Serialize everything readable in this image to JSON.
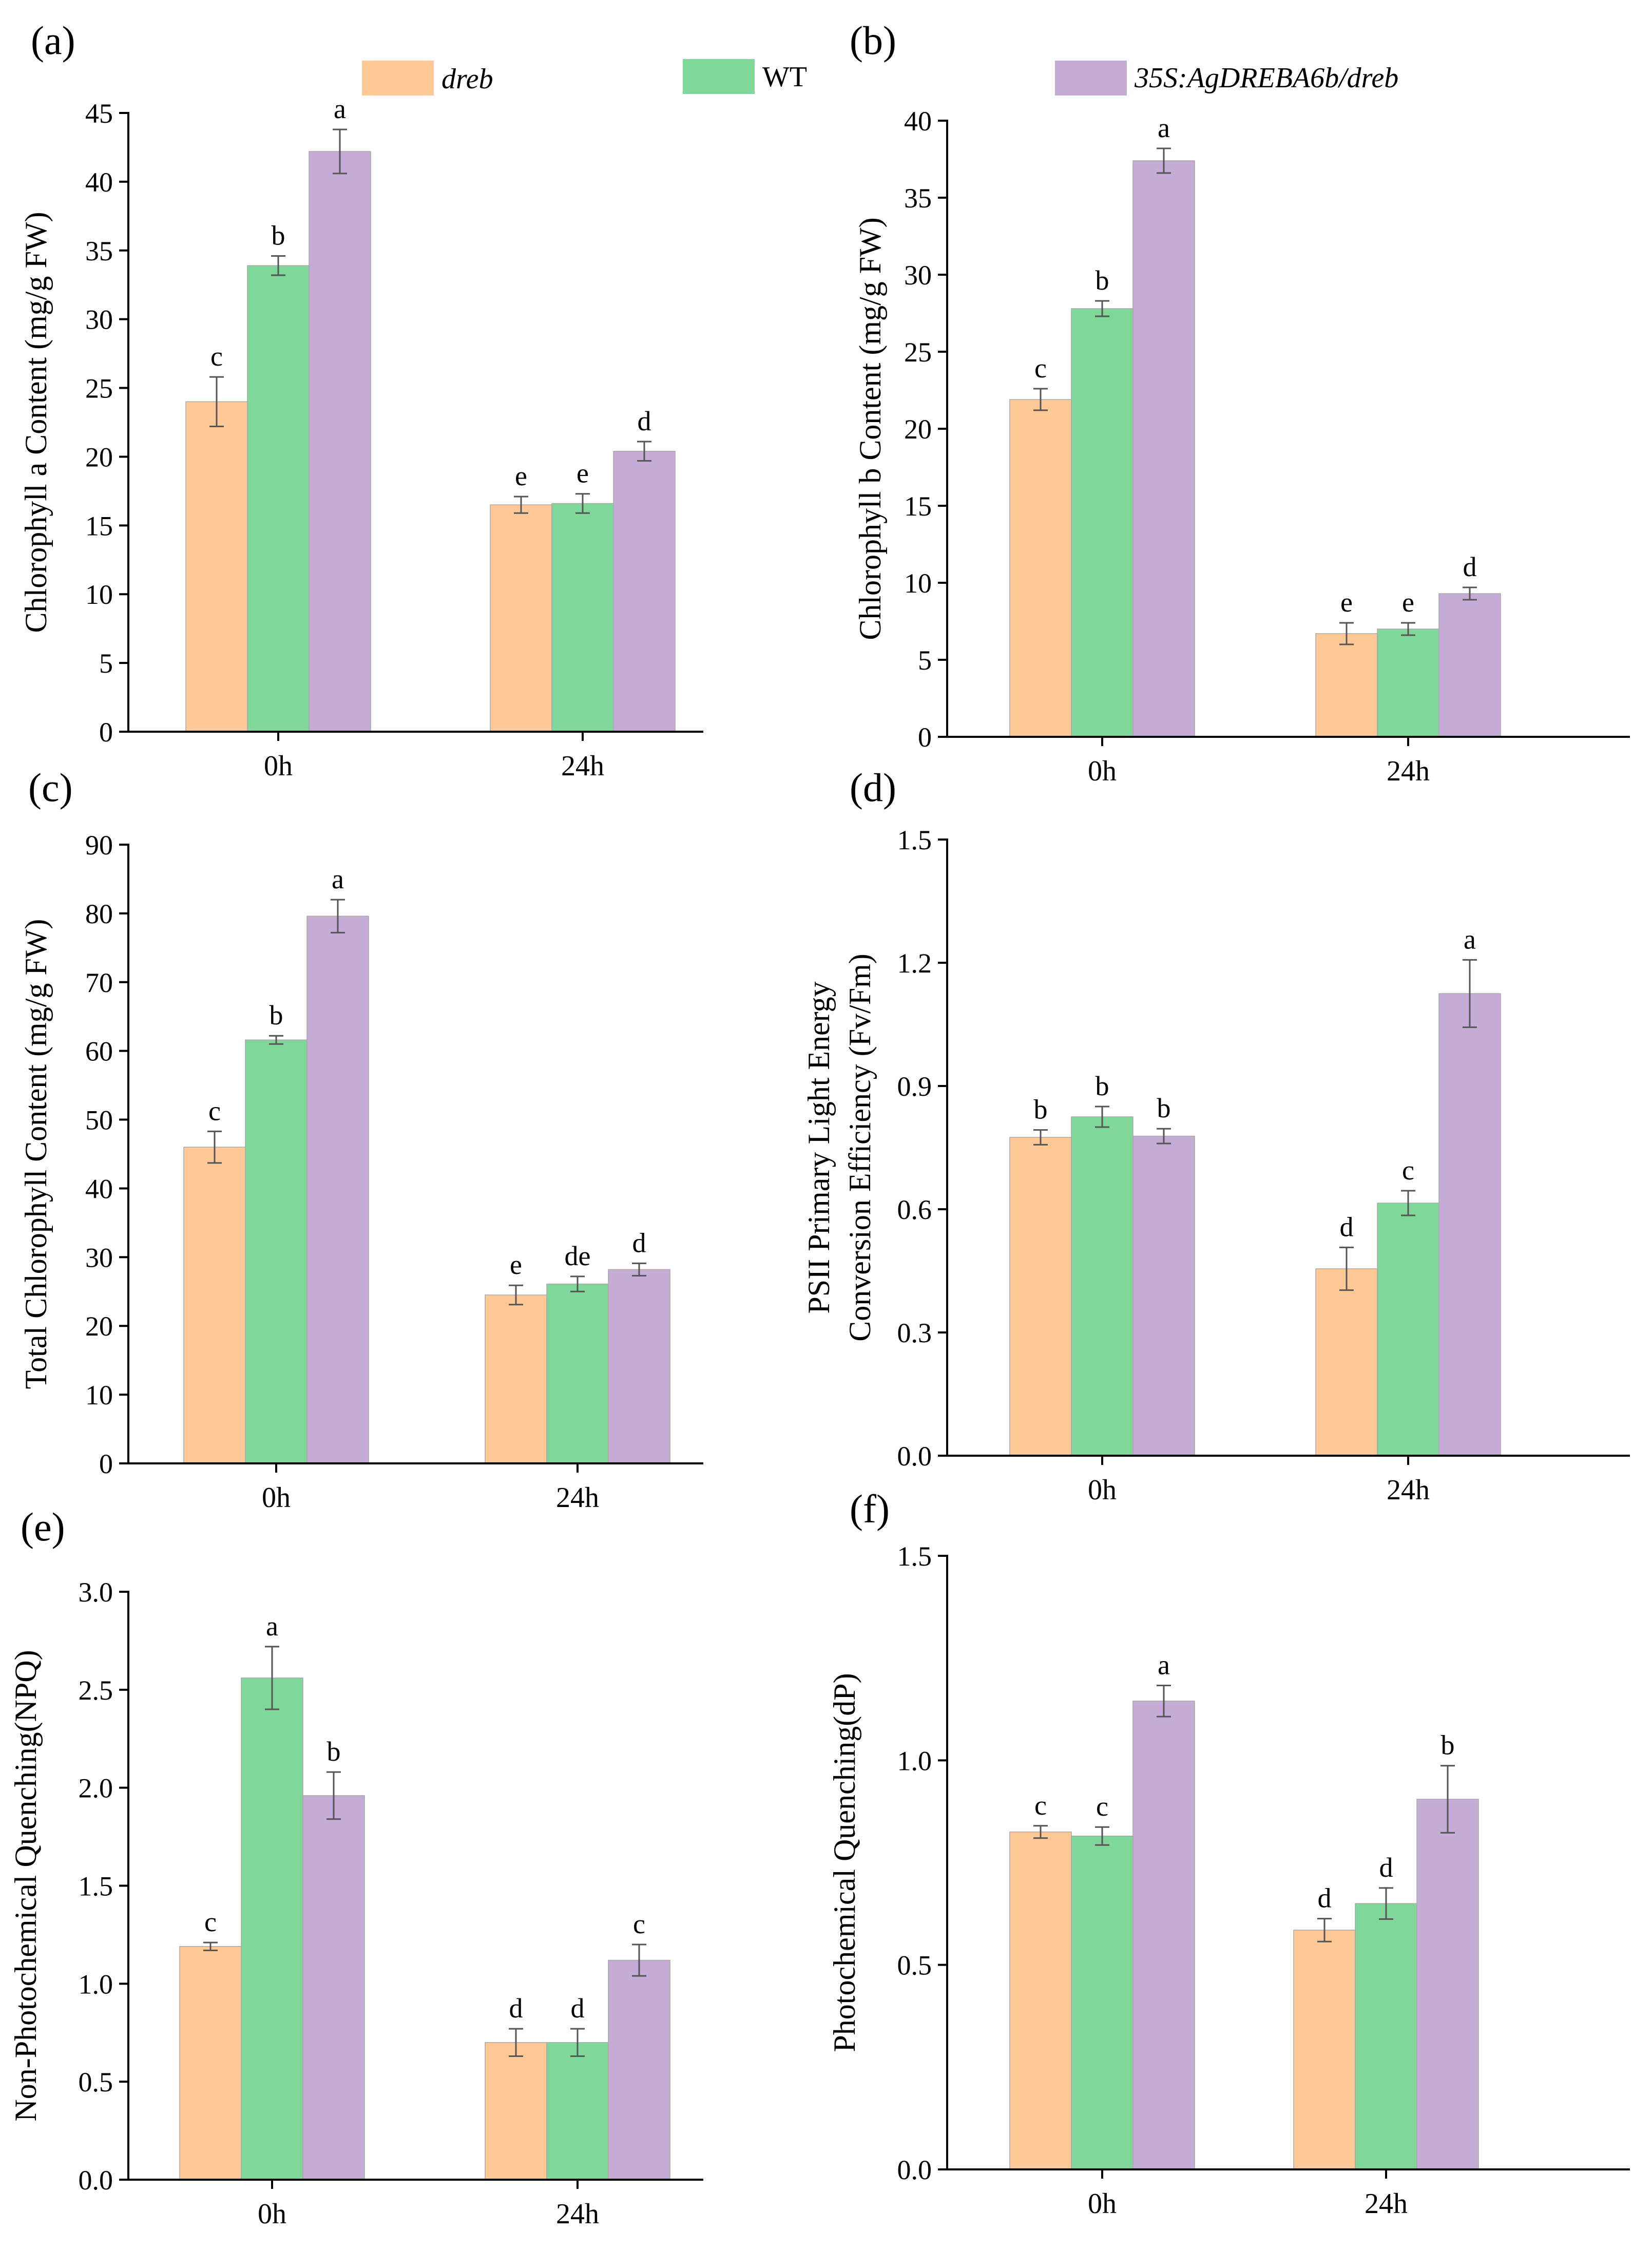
{
  "legend": {
    "series": [
      {
        "name": "dreb",
        "italic": true
      },
      {
        "name": "WT",
        "italic": false
      },
      {
        "name": "35S:AgDREBA6b/dreb",
        "italic": true
      }
    ]
  },
  "colors": {
    "series": [
      "#FFC897",
      "#7FD799",
      "#C5ACD6"
    ],
    "bar_edge": "#a9a9a9",
    "axis": "#000000"
  },
  "chart_data": [
    {
      "panel": "(a)",
      "type": "bar",
      "title": "",
      "categories": [
        "0h",
        "24h"
      ],
      "ylabel": [
        "Chlorophyll a Content (mg/g FW)"
      ],
      "ylim": [
        0,
        45
      ],
      "yticks": [
        "0",
        "5",
        "10",
        "15",
        "20",
        "25",
        "30",
        "35",
        "40",
        "45"
      ],
      "series": [
        {
          "name": "dreb",
          "values": [
            24.0,
            16.5
          ],
          "errors": [
            1.8,
            0.6
          ],
          "letters": [
            "c",
            "e"
          ]
        },
        {
          "name": "WT",
          "values": [
            33.9,
            16.6
          ],
          "errors": [
            0.7,
            0.7
          ],
          "letters": [
            "b",
            "e"
          ]
        },
        {
          "name": "35S:AgDREBA6b/dreb",
          "values": [
            42.2,
            20.4
          ],
          "errors": [
            1.6,
            0.7
          ],
          "letters": [
            "a",
            "d"
          ]
        }
      ]
    },
    {
      "panel": "(b)",
      "type": "bar",
      "title": "",
      "categories": [
        "0h",
        "24h"
      ],
      "ylabel": [
        "Chlorophyll b Content (mg/g FW)"
      ],
      "ylim": [
        0,
        40
      ],
      "yticks": [
        "0",
        "5",
        "10",
        "15",
        "20",
        "25",
        "30",
        "35",
        "40"
      ],
      "series": [
        {
          "name": "dreb",
          "values": [
            21.9,
            6.7
          ],
          "errors": [
            0.7,
            0.7
          ],
          "letters": [
            "c",
            "e"
          ]
        },
        {
          "name": "WT",
          "values": [
            27.8,
            7.0
          ],
          "errors": [
            0.5,
            0.4
          ],
          "letters": [
            "b",
            "e"
          ]
        },
        {
          "name": "35S:AgDREBA6b/dreb",
          "values": [
            37.4,
            9.3
          ],
          "errors": [
            0.8,
            0.4
          ],
          "letters": [
            "a",
            "d"
          ]
        }
      ]
    },
    {
      "panel": "(c)",
      "type": "bar",
      "title": "",
      "categories": [
        "0h",
        "24h"
      ],
      "ylabel": [
        "Total Chlorophyll Content (mg/g FW)"
      ],
      "ylim": [
        0,
        90
      ],
      "yticks": [
        "0",
        "10",
        "20",
        "30",
        "40",
        "50",
        "60",
        "70",
        "80",
        "90"
      ],
      "series": [
        {
          "name": "dreb",
          "values": [
            46.0,
            24.5
          ],
          "errors": [
            2.3,
            1.4
          ],
          "letters": [
            "c",
            "e"
          ]
        },
        {
          "name": "WT",
          "values": [
            61.6,
            26.1
          ],
          "errors": [
            0.6,
            1.1
          ],
          "letters": [
            "b",
            "de"
          ]
        },
        {
          "name": "35S:AgDREBA6b/dreb",
          "values": [
            79.6,
            28.2
          ],
          "errors": [
            2.4,
            0.9
          ],
          "letters": [
            "a",
            "d"
          ]
        }
      ]
    },
    {
      "panel": "(d)",
      "type": "bar",
      "title": "",
      "categories": [
        "0h",
        "24h"
      ],
      "ylabel": [
        "PSII Primary Light Energy",
        "Conversion Efficiency (Fv/Fm)"
      ],
      "ylim": [
        0,
        1.5
      ],
      "yticks": [
        "0.0",
        "0.3",
        "0.6",
        "0.9",
        "1.2",
        "1.5"
      ],
      "series": [
        {
          "name": "dreb",
          "values": [
            0.775,
            0.455
          ],
          "errors": [
            0.018,
            0.052
          ],
          "letters": [
            "b",
            "d"
          ]
        },
        {
          "name": "WT",
          "values": [
            0.825,
            0.615
          ],
          "errors": [
            0.025,
            0.03
          ],
          "letters": [
            "b",
            "c"
          ]
        },
        {
          "name": "35S:AgDREBA6b/dreb",
          "values": [
            0.778,
            1.125
          ],
          "errors": [
            0.018,
            0.082
          ],
          "letters": [
            "b",
            "a"
          ]
        }
      ]
    },
    {
      "panel": "(e)",
      "type": "bar",
      "title": "",
      "categories": [
        "0h",
        "24h"
      ],
      "ylabel": [
        "Non-Photochemical Quenching(NPQ)"
      ],
      "ylim": [
        0,
        3.0
      ],
      "yticks": [
        "0.0",
        "0.5",
        "1.0",
        "1.5",
        "2.0",
        "2.5",
        "3.0"
      ],
      "series": [
        {
          "name": "dreb",
          "values": [
            1.19,
            0.7
          ],
          "errors": [
            0.02,
            0.07
          ],
          "letters": [
            "c",
            "d"
          ]
        },
        {
          "name": "WT",
          "values": [
            2.56,
            0.7
          ],
          "errors": [
            0.16,
            0.07
          ],
          "letters": [
            "a",
            "d"
          ]
        },
        {
          "name": "35S:AgDREBA6b/dreb",
          "values": [
            1.96,
            1.12
          ],
          "errors": [
            0.12,
            0.08
          ],
          "letters": [
            "b",
            "c"
          ]
        }
      ]
    },
    {
      "panel": "(f)",
      "type": "bar",
      "title": "",
      "categories": [
        "0h",
        "24h"
      ],
      "ylabel": [
        "Photochemical Quenching(dP)"
      ],
      "ylim": [
        0,
        1.5
      ],
      "yticks": [
        "0.0",
        "0.5",
        "1.0",
        "1.5"
      ],
      "series": [
        {
          "name": "dreb",
          "values": [
            0.825,
            0.585
          ],
          "errors": [
            0.015,
            0.028
          ],
          "letters": [
            "c",
            "d"
          ]
        },
        {
          "name": "WT",
          "values": [
            0.815,
            0.65
          ],
          "errors": [
            0.022,
            0.038
          ],
          "letters": [
            "c",
            "d"
          ]
        },
        {
          "name": "35S:AgDREBA6b/dreb",
          "values": [
            1.145,
            0.905
          ],
          "errors": [
            0.038,
            0.082
          ],
          "letters": [
            "a",
            "b"
          ]
        }
      ]
    }
  ]
}
